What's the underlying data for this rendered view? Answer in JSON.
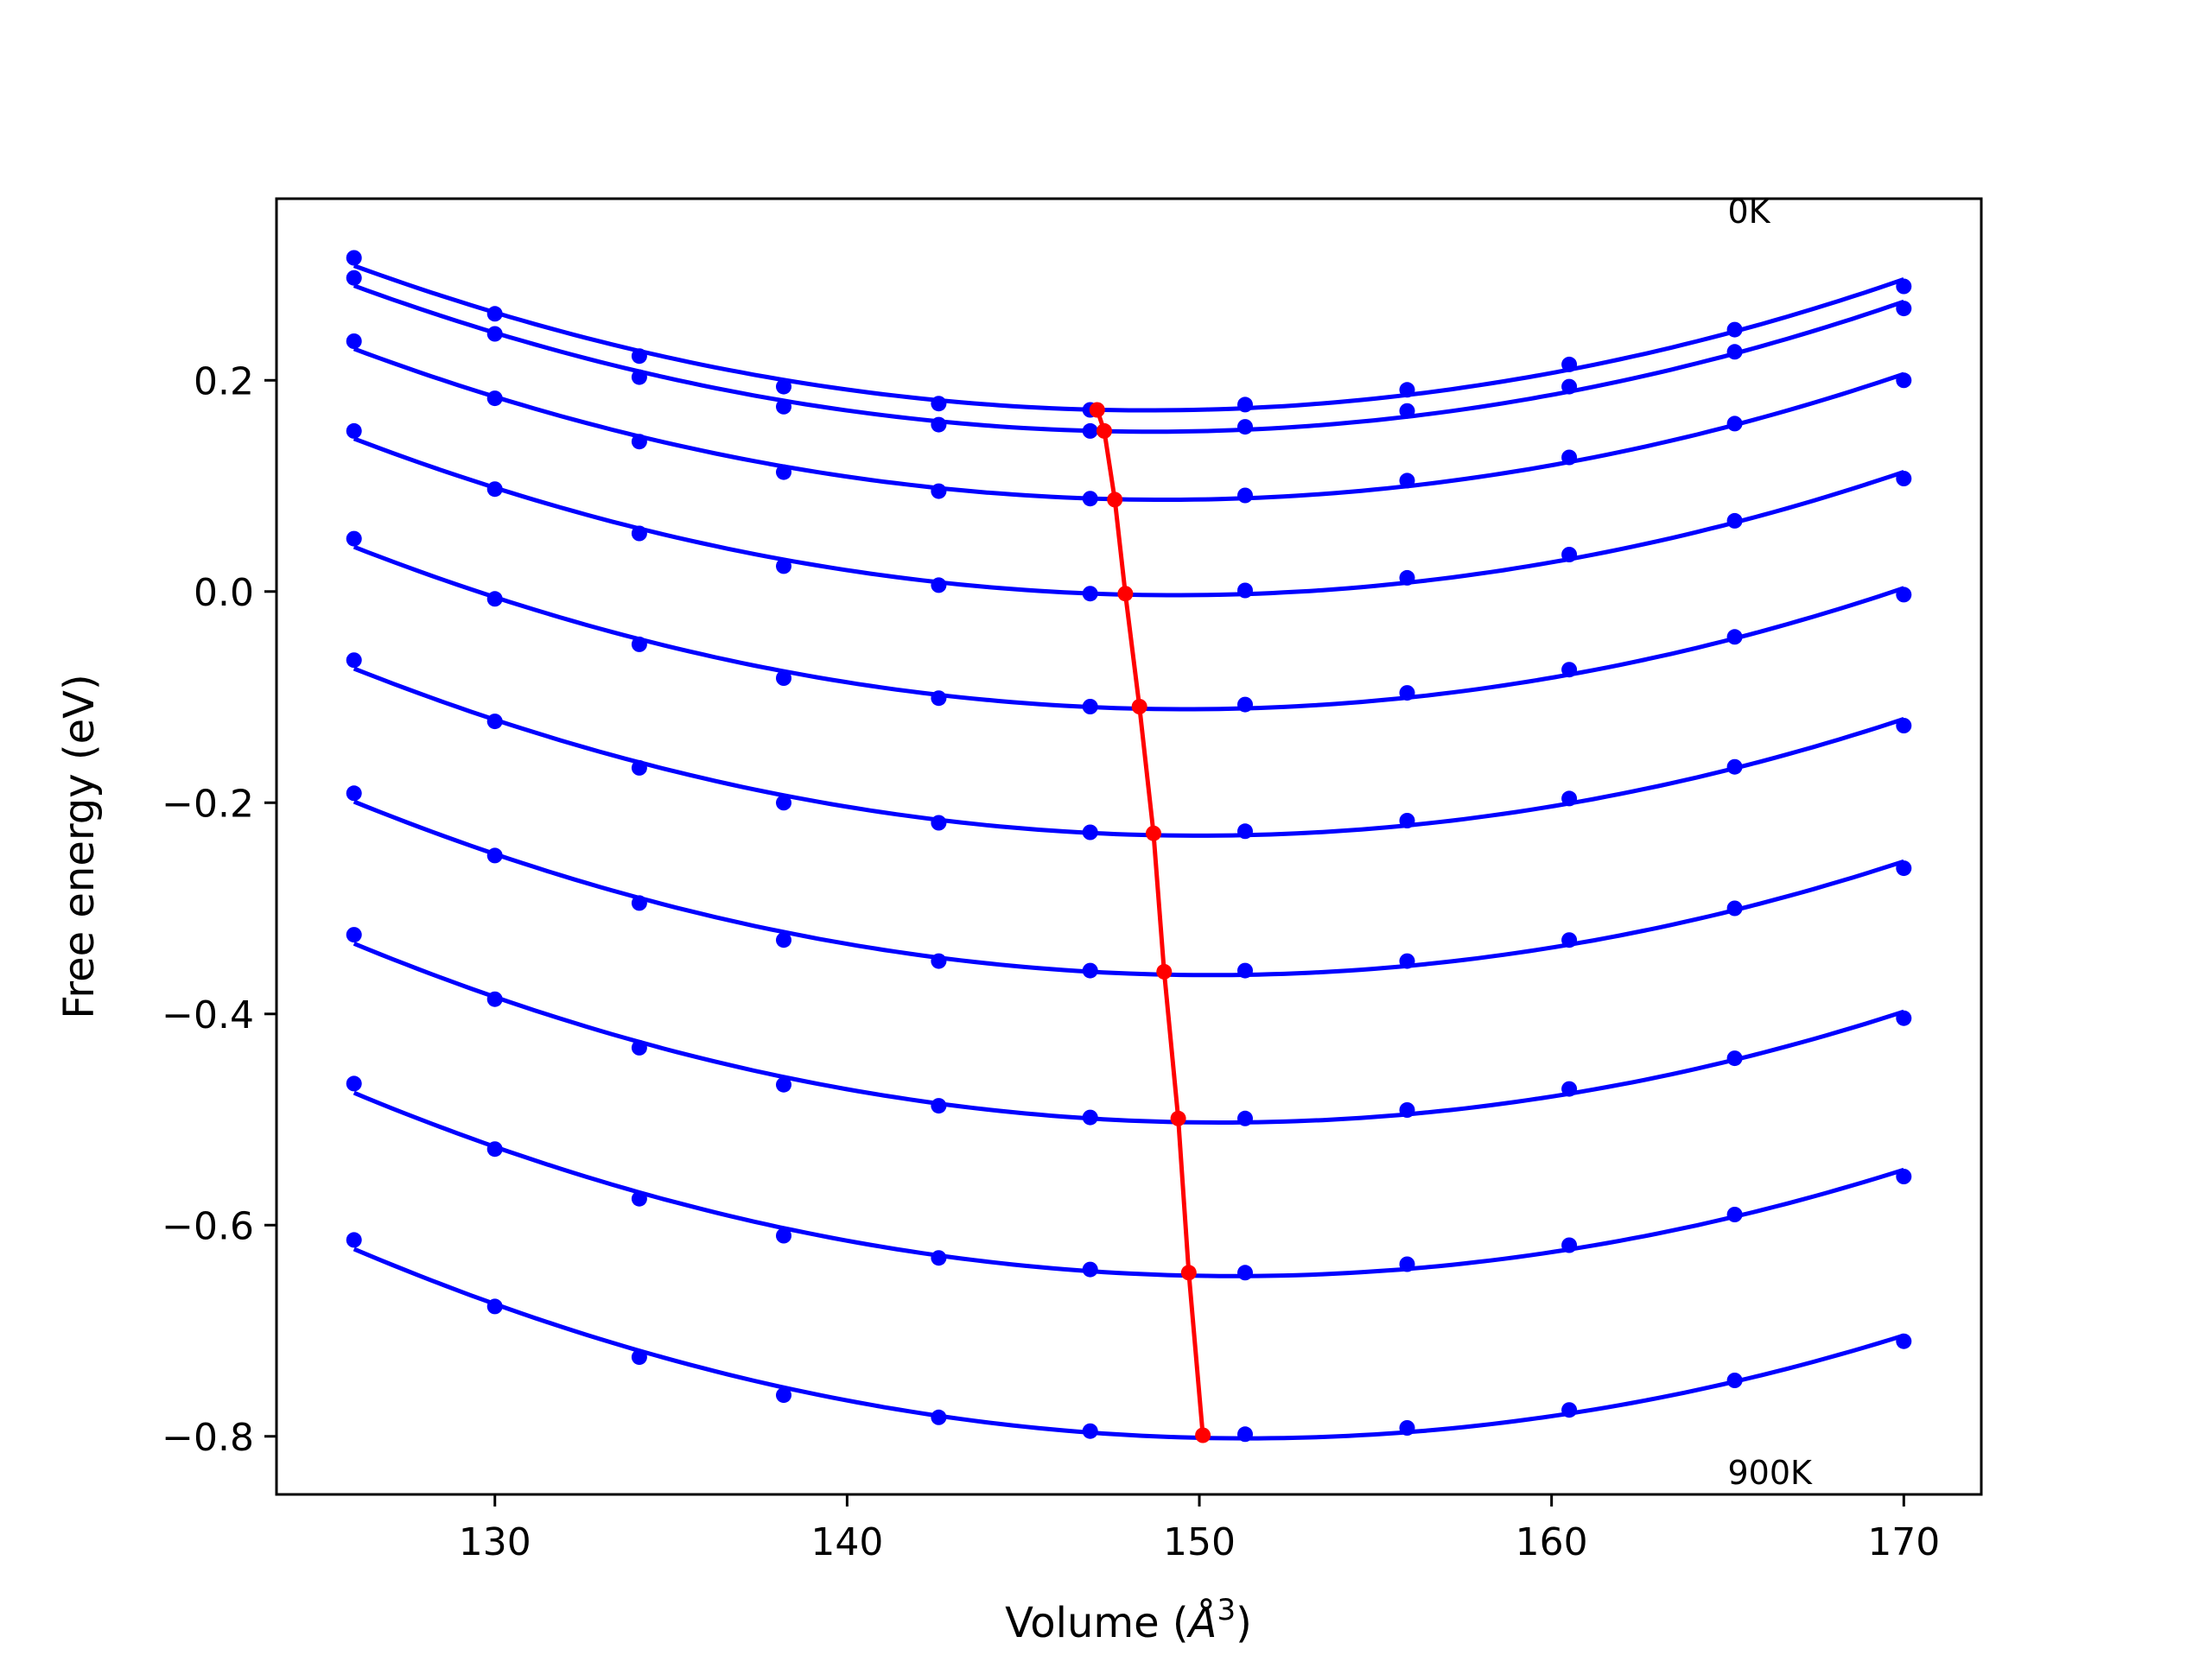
{
  "chart_data": {
    "type": "line",
    "title": "",
    "xlabel": "Volume (",
    "xlabel_unit": "Å",
    "xlabel_exponent": "3",
    "xlabel_suffix": ")",
    "ylabel": "Free energy (eV)",
    "xlim": [
      123.8,
      172.2
    ],
    "ylim": [
      -0.855,
      0.372
    ],
    "xticks": [
      130,
      140,
      150,
      160,
      170
    ],
    "xtick_labels": [
      "130",
      "140",
      "150",
      "160",
      "170"
    ],
    "yticks": [
      0.2,
      0.0,
      -0.2,
      -0.4,
      -0.6,
      -0.8
    ],
    "ytick_labels": [
      "0.2",
      "0.0",
      "−0.2",
      "−0.4",
      "−0.6",
      "−0.8"
    ],
    "grid": false,
    "annotations": [
      {
        "text": "0K",
        "x": 165.0,
        "y": 0.349
      },
      {
        "text": "900K",
        "x": 165.0,
        "y": -0.845
      }
    ],
    "x": [
      126.0,
      130.0,
      134.1,
      138.2,
      142.6,
      146.9,
      151.3,
      155.9,
      160.5,
      165.2,
      170.0
    ],
    "series": [
      {
        "color": "#0000ff",
        "values": [
          0.316,
          0.263,
          0.223,
          0.194,
          0.178,
          0.172,
          0.177,
          0.191,
          0.215,
          0.248,
          0.289
        ]
      },
      {
        "color": "#0000ff",
        "values": [
          0.297,
          0.244,
          0.203,
          0.175,
          0.158,
          0.152,
          0.156,
          0.171,
          0.194,
          0.227,
          0.268
        ]
      },
      {
        "color": "#0000ff",
        "values": [
          0.237,
          0.183,
          0.142,
          0.113,
          0.095,
          0.088,
          0.091,
          0.105,
          0.127,
          0.159,
          0.2
        ]
      },
      {
        "color": "#0000ff",
        "values": [
          0.152,
          0.097,
          0.055,
          0.024,
          0.006,
          -0.002,
          0.001,
          0.013,
          0.035,
          0.067,
          0.107
        ]
      },
      {
        "color": "#0000ff",
        "values": [
          0.05,
          -0.007,
          -0.05,
          -0.082,
          -0.101,
          -0.109,
          -0.107,
          -0.096,
          -0.074,
          -0.043,
          -0.003
        ]
      },
      {
        "color": "#0000ff",
        "values": [
          -0.065,
          -0.123,
          -0.167,
          -0.2,
          -0.219,
          -0.228,
          -0.227,
          -0.217,
          -0.196,
          -0.166,
          -0.127
        ]
      },
      {
        "color": "#0000ff",
        "values": [
          -0.191,
          -0.25,
          -0.295,
          -0.33,
          -0.35,
          -0.359,
          -0.359,
          -0.35,
          -0.33,
          -0.3,
          -0.262
        ]
      },
      {
        "color": "#0000ff",
        "values": [
          -0.325,
          -0.386,
          -0.432,
          -0.467,
          -0.487,
          -0.498,
          -0.499,
          -0.491,
          -0.471,
          -0.442,
          -0.404
        ]
      },
      {
        "color": "#0000ff",
        "values": [
          -0.466,
          -0.528,
          -0.575,
          -0.61,
          -0.631,
          -0.642,
          -0.645,
          -0.637,
          -0.619,
          -0.59,
          -0.554
        ]
      },
      {
        "color": "#0000ff",
        "values": [
          -0.614,
          -0.677,
          -0.725,
          -0.761,
          -0.782,
          -0.795,
          -0.798,
          -0.792,
          -0.775,
          -0.747,
          -0.71
        ]
      }
    ],
    "minimum_line": {
      "color": "#ff0000",
      "x": [
        147.1,
        147.3,
        147.6,
        147.9,
        148.3,
        148.7,
        149.0,
        149.4,
        149.7,
        150.1
      ],
      "y": [
        0.172,
        0.152,
        0.087,
        -0.002,
        -0.109,
        -0.229,
        -0.36,
        -0.499,
        -0.645,
        -0.799
      ]
    }
  }
}
